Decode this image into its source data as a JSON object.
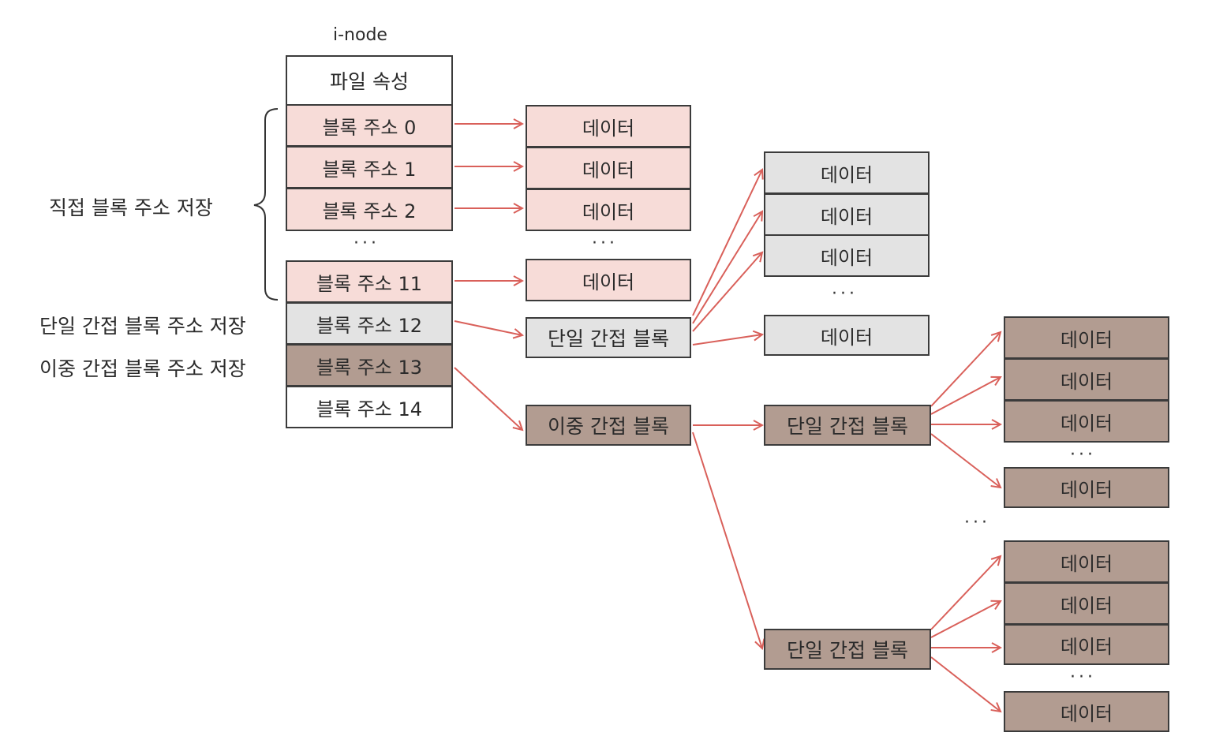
{
  "inode": {
    "title": "i-node",
    "attr_label": "파일 속성",
    "addr": [
      "블록 주소 0",
      "블록 주소 1",
      "블록 주소 2",
      "블록 주소 11",
      "블록 주소 12",
      "블록 주소 13",
      "블록 주소 14"
    ],
    "ellipsis": "···"
  },
  "labels": {
    "direct": "직접 블록 주소 저장",
    "single": "단일 간접 블록 주소 저장",
    "double": "이중 간접 블록 주소 저장"
  },
  "blocks": {
    "data": "데이터",
    "single_indirect": "단일 간접 블록",
    "double_indirect": "이중 간접 블록",
    "ellipsis": "···"
  },
  "colors": {
    "direct": "#f7dcd8",
    "single": "#e3e3e3",
    "double": "#b29c91",
    "arrow": "#d9605a",
    "border": "#3b3b3b"
  }
}
